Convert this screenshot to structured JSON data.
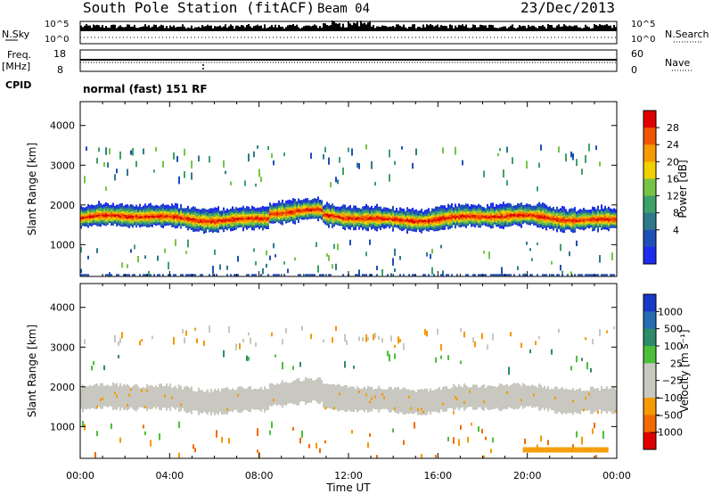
{
  "header": {
    "station": "South Pole Station (fitACF)",
    "beam": "Beam 04",
    "date": "23/Dec/2013"
  },
  "panels": {
    "nsky_label": "N.Sky",
    "nsky_ticks": [
      "10^5",
      "10^0"
    ],
    "nsearch_label": "N.Search",
    "nsearch_ticks": [
      "10^5",
      "10^0"
    ],
    "freq_label_1": "Freq.",
    "freq_label_2": "[MHz]",
    "freq_ticks": [
      "18",
      "8"
    ],
    "nave_label": "Nave",
    "nave_ticks": [
      "60",
      "0"
    ],
    "cpid_label": "CPID",
    "cpid_value": "normal (fast) 151 RF"
  },
  "chart_data": [
    {
      "type": "heatmap",
      "name": "power",
      "ylabel": "Slant Range [km]",
      "yticks": [
        "1000",
        "2000",
        "3000",
        "4000"
      ],
      "ylim": [
        200,
        4600
      ],
      "xlabel": "Time UT",
      "xticks": [
        "00:00",
        "04:00",
        "08:00",
        "12:00",
        "16:00",
        "20:00",
        "00:00"
      ],
      "xlim": [
        0,
        24
      ],
      "colorbar": {
        "label": "Power [dB]",
        "ticks": [
          "4",
          "8",
          "12",
          "16",
          "20",
          "24",
          "28"
        ],
        "colors": [
          "#1e2cf0",
          "#1f4fb8",
          "#2f7a8a",
          "#3ea16a",
          "#77c444",
          "#f1d100",
          "#f59a00",
          "#f25500",
          "#e00000"
        ]
      },
      "bands": [
        {
          "range_km": [
            1400,
            2200
          ],
          "peak_km": 1700,
          "peak_power_db": 28
        }
      ]
    },
    {
      "type": "heatmap",
      "name": "velocity",
      "ylabel": "Slant Range [km]",
      "yticks": [
        "1000",
        "2000",
        "3000",
        "4000"
      ],
      "ylim": [
        200,
        4600
      ],
      "xlabel": "Time UT",
      "xticks": [
        "00:00",
        "04:00",
        "08:00",
        "12:00",
        "16:00",
        "20:00",
        "00:00"
      ],
      "xlim": [
        0,
        24
      ],
      "colorbar": {
        "label": "Velocity [m s⁻¹]",
        "ticks": [
          "1000",
          "500",
          "100",
          "25",
          "−25",
          "−100",
          "−500",
          "−1000"
        ],
        "colors": [
          "#1838c8",
          "#246eb0",
          "#2f8a6a",
          "#4cbf3a",
          "#c8c8c0",
          "#c8c8c0",
          "#f59a00",
          "#f26a00",
          "#e00000"
        ]
      }
    }
  ]
}
